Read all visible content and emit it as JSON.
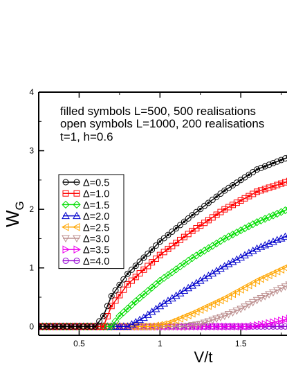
{
  "chart_data": {
    "type": "line",
    "xlabel": "V/t",
    "ylabel": "W",
    "ylabel_sub": "G",
    "xlim": [
      0.25,
      1.85
    ],
    "ylim": [
      -0.15,
      4.0
    ],
    "xticks": [
      0.5,
      1,
      1.5
    ],
    "xtick_labels": [
      "0.5",
      "1",
      "1.5"
    ],
    "yticks": [
      0,
      1,
      2,
      3,
      4
    ],
    "ytick_labels": [
      "0",
      "1",
      "2",
      "3",
      "4"
    ],
    "annotations": [
      "filled symbols L=500, 500 realisations",
      "open symbols L=1000, 200 realisations",
      "t=1, h=0.6"
    ],
    "legend_position": "left-middle",
    "series": [
      {
        "name": "Δ=0.5",
        "color": "#000000",
        "marker": "circle",
        "onset": 0.6,
        "curve": [
          [
            0.6,
            0
          ],
          [
            0.65,
            0.18
          ],
          [
            0.7,
            0.52
          ],
          [
            0.8,
            0.9
          ],
          [
            1.0,
            1.45
          ],
          [
            1.2,
            1.9
          ],
          [
            1.4,
            2.32
          ],
          [
            1.6,
            2.68
          ],
          [
            1.85,
            2.95
          ]
        ]
      },
      {
        "name": "Δ=1.0",
        "color": "#ff0000",
        "marker": "square",
        "onset": 0.65,
        "curve": [
          [
            0.65,
            0
          ],
          [
            0.7,
            0.35
          ],
          [
            0.8,
            0.72
          ],
          [
            1.0,
            1.22
          ],
          [
            1.2,
            1.63
          ],
          [
            1.4,
            2.0
          ],
          [
            1.6,
            2.3
          ],
          [
            1.85,
            2.53
          ]
        ]
      },
      {
        "name": "Δ=1.5",
        "color": "#00dd00",
        "marker": "diamond",
        "onset": 0.7,
        "curve": [
          [
            0.7,
            0
          ],
          [
            0.75,
            0.18
          ],
          [
            0.85,
            0.43
          ],
          [
            1.0,
            0.78
          ],
          [
            1.2,
            1.17
          ],
          [
            1.4,
            1.5
          ],
          [
            1.6,
            1.78
          ],
          [
            1.85,
            2.07
          ]
        ]
      },
      {
        "name": "Δ=2.0",
        "color": "#0000cc",
        "marker": "triangle-up",
        "onset": 0.8,
        "curve": [
          [
            0.8,
            0
          ],
          [
            0.9,
            0.15
          ],
          [
            1.0,
            0.35
          ],
          [
            1.2,
            0.7
          ],
          [
            1.4,
            1.03
          ],
          [
            1.6,
            1.33
          ],
          [
            1.85,
            1.62
          ]
        ]
      },
      {
        "name": "Δ=2.5",
        "color": "#ffa500",
        "marker": "triangle-left",
        "onset": 1.0,
        "curve": [
          [
            0.95,
            0
          ],
          [
            1.05,
            0.05
          ],
          [
            1.2,
            0.22
          ],
          [
            1.4,
            0.48
          ],
          [
            1.6,
            0.78
          ],
          [
            1.85,
            1.1
          ]
        ]
      },
      {
        "name": "Δ=3.0",
        "color": "#bc8f8f",
        "marker": "triangle-down",
        "onset": 1.2,
        "curve": [
          [
            1.15,
            0
          ],
          [
            1.25,
            0.04
          ],
          [
            1.4,
            0.18
          ],
          [
            1.5,
            0.3
          ],
          [
            1.6,
            0.45
          ],
          [
            1.85,
            0.78
          ]
        ]
      },
      {
        "name": "Δ=3.5",
        "color": "#ee00ee",
        "marker": "triangle-right",
        "onset": 1.6,
        "curve": [
          [
            1.55,
            0
          ],
          [
            1.65,
            0.04
          ],
          [
            1.75,
            0.1
          ],
          [
            1.85,
            0.17
          ]
        ]
      },
      {
        "name": "Δ=4.0",
        "color": "#9400d3",
        "marker": "circle",
        "onset": 1.85,
        "curve": [
          [
            1.85,
            0
          ]
        ]
      }
    ]
  }
}
